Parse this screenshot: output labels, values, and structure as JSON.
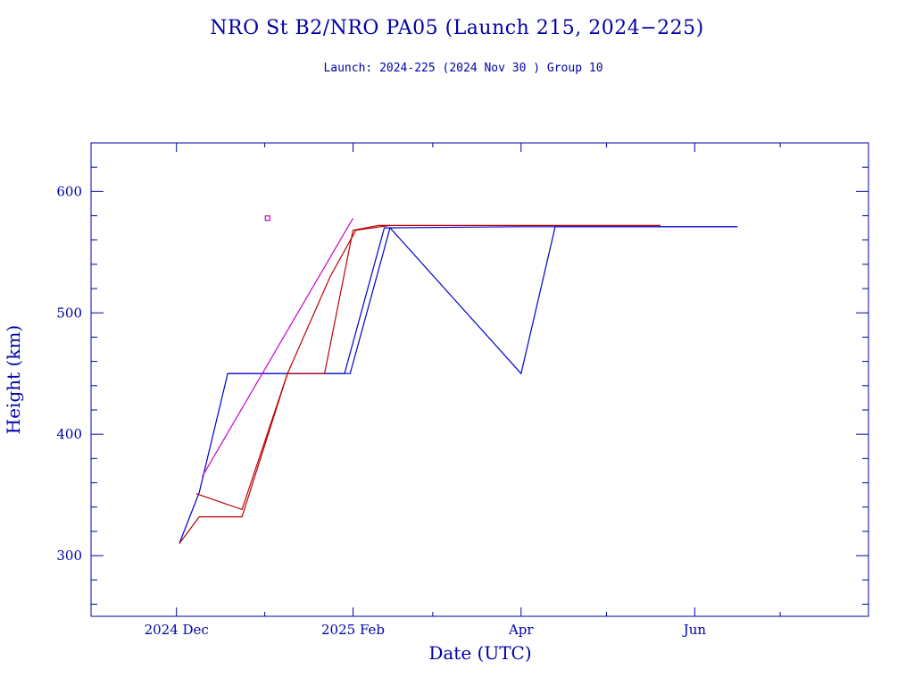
{
  "chart_data": {
    "type": "line",
    "title": "NRO St B2/NRO PA05 (Launch 215, 2024−225)",
    "subtitle": "Launch: 2024-225  (2024 Nov 30 )  Group 10",
    "xlabel": "Date (UTC)",
    "ylabel": "Height (km)",
    "xlim": [
      "2024-11-01",
      "2025-08-01"
    ],
    "ylim": [
      250,
      640
    ],
    "x_tick_labels": [
      {
        "date": "2024-12-01",
        "label": "2024 Dec"
      },
      {
        "date": "2025-02-01",
        "label": "2025 Feb"
      },
      {
        "date": "2025-04-01",
        "label": "Apr"
      },
      {
        "date": "2025-06-01",
        "label": "Jun"
      }
    ],
    "y_ticks": [
      300,
      400,
      500,
      600
    ],
    "grid": false,
    "colors": {
      "axis": "#0000aa",
      "blue_series": "#0000cc",
      "red_series": "#bb0000",
      "magenta_series": "#cc00cc"
    },
    "series": [
      {
        "color": "blue",
        "x": [
          "2024-12-02",
          "2024-12-09",
          "2024-12-19",
          "2025-01-29",
          "2025-02-12",
          "2025-04-01",
          "2025-06-16"
        ],
        "y": [
          310,
          352,
          450,
          450,
          570,
          571,
          571
        ]
      },
      {
        "color": "blue",
        "x": [
          "2024-12-19",
          "2025-01-31",
          "2025-02-14",
          "2025-04-01",
          "2025-04-13",
          "2025-06-16"
        ],
        "y": [
          450,
          450,
          570,
          450,
          571,
          571
        ]
      },
      {
        "color": "red",
        "x": [
          "2024-12-02",
          "2024-12-09",
          "2024-12-24",
          "2025-01-09",
          "2025-01-22",
          "2025-02-01",
          "2025-02-10",
          "2025-05-20"
        ],
        "y": [
          310,
          332,
          332,
          450,
          450,
          568,
          572,
          572
        ]
      },
      {
        "color": "red",
        "x": [
          "2024-12-08",
          "2024-12-24",
          "2025-01-09",
          "2025-01-24",
          "2025-02-02",
          "2025-02-14"
        ],
        "y": [
          351,
          338,
          450,
          530,
          568,
          572
        ]
      },
      {
        "color": "magenta",
        "x": [
          "2024-12-10",
          "2025-02-01"
        ],
        "y": [
          365,
          578
        ]
      },
      {
        "color": "magenta",
        "x": [
          "2025-01-02"
        ],
        "y": [
          578
        ],
        "marker": "square"
      }
    ]
  }
}
